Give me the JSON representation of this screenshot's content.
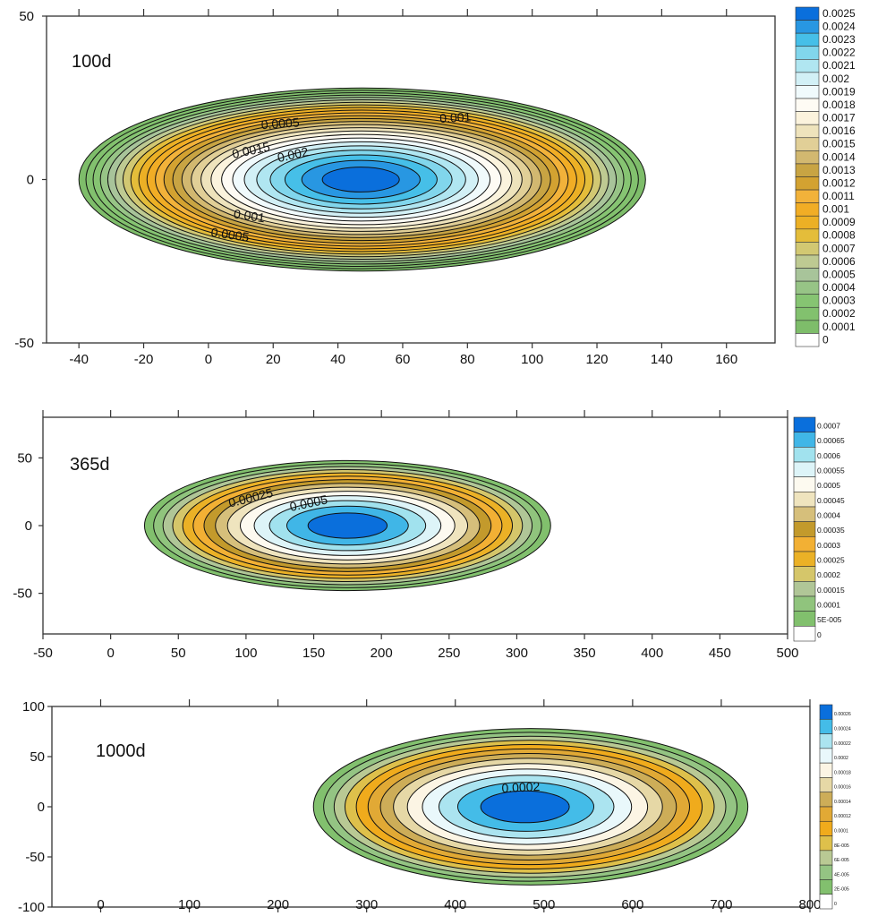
{
  "chart_data": [
    {
      "type": "contour",
      "title": "100d",
      "xlim": [
        -50,
        175
      ],
      "ylim": [
        -50,
        50
      ],
      "xticks": [
        -40,
        -20,
        0,
        20,
        40,
        60,
        80,
        100,
        120,
        140,
        160
      ],
      "yticks": [
        50,
        0,
        -50
      ],
      "peak": {
        "x": 47,
        "y": 0,
        "value": 0.0025
      },
      "plume": {
        "x_min": -40,
        "x_max": 135,
        "y_min": -28,
        "y_max": 28
      },
      "levels": [
        "0.0025",
        "0.0024",
        "0.0023",
        "0.0022",
        "0.0021",
        "0.002",
        "0.0019",
        "0.0018",
        "0.0017",
        "0.0016",
        "0.0015",
        "0.0014",
        "0.0013",
        "0.0012",
        "0.0011",
        "0.001",
        "0.0009",
        "0.0008",
        "0.0007",
        "0.0006",
        "0.0005",
        "0.0004",
        "0.0003",
        "0.0002",
        "0.0001",
        "0"
      ],
      "contour_labels": [
        "0.0005",
        "0.001",
        "0.0015",
        "0.002",
        "0.001",
        "0.0005"
      ]
    },
    {
      "type": "contour",
      "title": "365d",
      "xlim": [
        -50,
        500
      ],
      "ylim": [
        -80,
        80
      ],
      "xticks": [
        -50,
        0,
        50,
        100,
        150,
        200,
        250,
        300,
        350,
        400,
        450,
        500
      ],
      "yticks": [
        50,
        0,
        -50
      ],
      "peak": {
        "x": 175,
        "y": 0,
        "value": 0.0007
      },
      "plume": {
        "x_min": 25,
        "x_max": 325,
        "y_min": -48,
        "y_max": 48
      },
      "levels": [
        "0.0007",
        "0.00065",
        "0.0006",
        "0.00055",
        "0.0005",
        "0.00045",
        "0.0004",
        "0.00035",
        "0.0003",
        "0.00025",
        "0.0002",
        "0.00015",
        "0.0001",
        "5E-005",
        "0"
      ],
      "contour_labels": [
        "0.00025",
        "0.0005"
      ]
    },
    {
      "type": "contour",
      "title": "1000d",
      "xlim": [
        -55,
        800
      ],
      "ylim": [
        -100,
        100
      ],
      "xticks": [
        0,
        100,
        200,
        300,
        400,
        500,
        600,
        700,
        800
      ],
      "yticks": [
        100,
        50,
        0,
        -50,
        -100
      ],
      "peak": {
        "x": 477,
        "y": 0,
        "value": 0.00026
      },
      "plume": {
        "x_min": 240,
        "x_max": 730,
        "y_min": -78,
        "y_max": 78
      },
      "levels": [
        "0.00026",
        "0.00024",
        "0.00022",
        "0.0002",
        "0.00018",
        "0.00016",
        "0.00014",
        "0.00012",
        "0.0001",
        "8E-005",
        "6E-005",
        "4E-005",
        "2E-005",
        "0"
      ],
      "contour_labels": [
        "0.0002"
      ]
    }
  ]
}
